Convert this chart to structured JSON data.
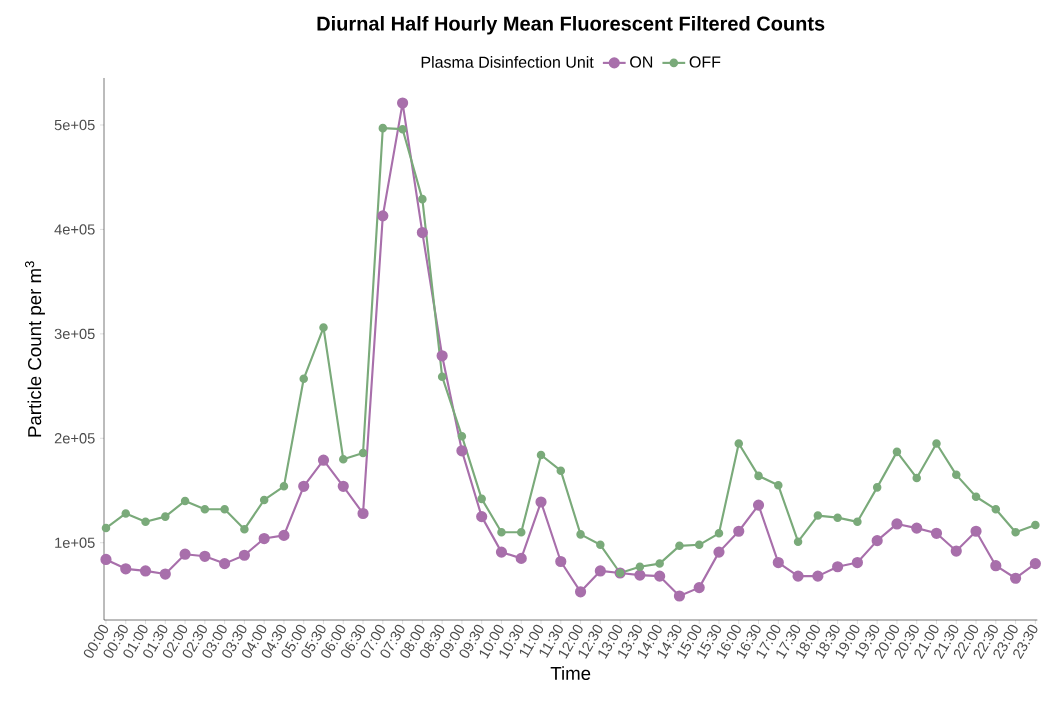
{
  "chart_data": {
    "type": "line",
    "title": "Diurnal Half Hourly Mean Fluorescent Filtered Counts",
    "legend_title": "Plasma Disinfection Unit",
    "xlabel": "Time",
    "ylabel": "Particle Count per  m$^{3}$",
    "categories": [
      "00:00",
      "00:30",
      "01:00",
      "01:30",
      "02:00",
      "02:30",
      "03:00",
      "03:30",
      "04:00",
      "04:30",
      "05:00",
      "05:30",
      "06:00",
      "06:30",
      "07:00",
      "07:30",
      "08:00",
      "08:30",
      "09:00",
      "09:30",
      "10:00",
      "10:30",
      "11:00",
      "11:30",
      "12:00",
      "12:30",
      "13:00",
      "13:30",
      "14:00",
      "14:30",
      "15:00",
      "15:30",
      "16:00",
      "16:30",
      "17:00",
      "17:30",
      "18:00",
      "18:30",
      "19:00",
      "19:30",
      "20:00",
      "20:30",
      "21:00",
      "21:30",
      "22:00",
      "22:30",
      "23:00",
      "23:30"
    ],
    "series": [
      {
        "name": "ON",
        "color": "#a86fab",
        "values": [
          84000,
          75000,
          73000,
          70000,
          89000,
          87000,
          80000,
          88000,
          104000,
          107000,
          154000,
          179000,
          154000,
          128000,
          413000,
          521000,
          397000,
          279000,
          188000,
          125000,
          91000,
          85000,
          139000,
          82000,
          53000,
          73000,
          71000,
          69000,
          68000,
          49000,
          57000,
          91000,
          111000,
          136000,
          81000,
          68000,
          68000,
          77000,
          81000,
          102000,
          118000,
          114000,
          109000,
          92000,
          111000,
          78000,
          66000,
          80000
        ]
      },
      {
        "name": "OFF",
        "color": "#7aaa7a",
        "values": [
          114000,
          128000,
          120000,
          125000,
          140000,
          132000,
          132000,
          113000,
          141000,
          154000,
          257000,
          306000,
          180000,
          186000,
          497000,
          496000,
          429000,
          259000,
          202000,
          142000,
          110000,
          110000,
          184000,
          169000,
          108000,
          98000,
          71000,
          77000,
          80000,
          97000,
          98000,
          109000,
          195000,
          164000,
          155000,
          101000,
          126000,
          124000,
          120000,
          153000,
          187000,
          162000,
          195000,
          165000,
          144000,
          132000,
          110000,
          117000
        ]
      }
    ],
    "ylim": [
      26000,
      545000
    ],
    "yticks": [
      {
        "value": 100000,
        "label": "1e+05"
      },
      {
        "value": 200000,
        "label": "2e+05"
      },
      {
        "value": 300000,
        "label": "3e+05"
      },
      {
        "value": 400000,
        "label": "4e+05"
      },
      {
        "value": 500000,
        "label": "5e+05"
      }
    ],
    "grid": false,
    "legend": "top",
    "marker": "circle"
  }
}
